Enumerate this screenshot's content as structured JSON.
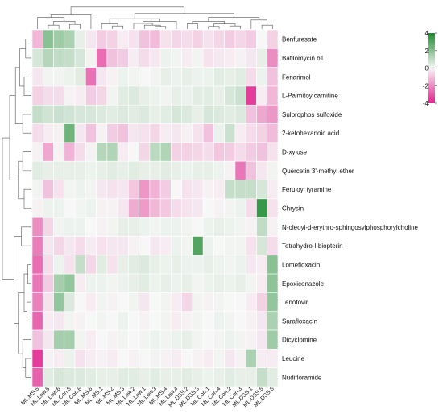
{
  "chart_data": {
    "type": "heatmap",
    "title": "",
    "xlabel": "",
    "ylabel": "",
    "columns": [
      "ML.MS.5",
      "ML.Low.5",
      "ML.Low.6",
      "ML.Con.5",
      "ML.Con.6",
      "ML.MS.6",
      "ML.MS.1",
      "ML.MS.2",
      "ML.MS.3",
      "ML.Low.2",
      "ML.Low.1",
      "ML.Low.3",
      "ML.MS.4",
      "ML.Low.4",
      "ML.DSS.2",
      "ML.DSS.3",
      "ML.Con.1",
      "ML.Con.4",
      "ML.Con.2",
      "ML.Con.3",
      "ML.DSS.1",
      "ML.DSS.5",
      "ML.DSS.6"
    ],
    "rows": [
      "Benfuresate",
      "Bafilomycin b1",
      "Fenarimol",
      "L-Palmitoylcarnitine",
      "Sulprophos sulfoxide",
      "2-ketohexanoic acid",
      "D-xylose",
      "Quercetin 3'-methyl ether",
      "Feruloyl tyramine",
      "Chrysin",
      "N-oleoyl-d-erythro-sphingosylphosphorylcholine",
      "Tetrahydro-l-biopterin",
      "Lomefloxacin",
      "Epoxiconazole",
      "Tenofovir",
      "Sarafloxacin",
      "Dicyclomine",
      "Leucine",
      "Nudifloramide"
    ],
    "values": [
      [
        -1.2,
        2.0,
        1.6,
        1.4,
        0.3,
        -0.3,
        -0.8,
        -0.7,
        -0.2,
        -0.4,
        -1.0,
        -1.1,
        -0.4,
        -0.6,
        -0.5,
        -0.7,
        -0.4,
        -0.6,
        -0.8,
        -0.6,
        -0.8,
        0.0,
        -0.7
      ],
      [
        0.6,
        1.2,
        1.0,
        0.9,
        0.6,
        0.1,
        -2.6,
        -1.0,
        -0.8,
        -0.2,
        -0.5,
        -0.3,
        0.2,
        0.1,
        -0.2,
        0.1,
        -0.4,
        -0.3,
        -0.2,
        -0.1,
        -0.3,
        0.3,
        -2.0
      ],
      [
        -0.3,
        0.1,
        0.1,
        0.2,
        0.4,
        -2.5,
        -0.3,
        -0.1,
        0.2,
        0.1,
        0.0,
        0.1,
        0.3,
        0.2,
        0.3,
        0.2,
        0.2,
        0.4,
        0.3,
        0.4,
        -0.5,
        0.2,
        -1.0
      ],
      [
        -0.7,
        -0.5,
        -0.5,
        -0.1,
        -0.2,
        -0.8,
        -0.6,
        0.1,
        0.4,
        0.5,
        0.3,
        0.2,
        0.1,
        0.3,
        0.2,
        0.4,
        0.4,
        0.3,
        0.6,
        0.8,
        -3.5,
        -0.2,
        -1.2
      ],
      [
        0.9,
        0.7,
        0.8,
        0.7,
        0.6,
        0.6,
        0.5,
        0.4,
        0.5,
        0.4,
        0.5,
        0.3,
        0.4,
        0.6,
        0.5,
        0.3,
        0.6,
        0.5,
        0.4,
        0.5,
        -1.0,
        -1.5,
        -1.8
      ],
      [
        -0.5,
        -0.2,
        -0.1,
        2.5,
        -0.3,
        -1.0,
        -0.1,
        -0.8,
        -1.0,
        -0.3,
        -0.4,
        -0.6,
        -0.2,
        -0.3,
        -0.1,
        -0.4,
        -1.0,
        0.2,
        0.8,
        -0.2,
        -0.5,
        -0.7,
        -1.1
      ],
      [
        -0.1,
        -1.5,
        -0.1,
        -1.3,
        -0.5,
        -0.1,
        1.2,
        1.3,
        -0.2,
        0.0,
        -0.6,
        1.1,
        1.3,
        -0.7,
        -0.7,
        -0.6,
        -0.5,
        -0.9,
        -0.8,
        -0.5,
        -0.8,
        -1.0,
        -0.4
      ],
      [
        0.4,
        0.3,
        0.3,
        0.3,
        0.3,
        0.2,
        0.3,
        0.4,
        0.3,
        0.4,
        0.3,
        0.3,
        0.4,
        0.3,
        0.2,
        0.3,
        0.3,
        0.2,
        -0.1,
        -2.4,
        -1.0,
        -0.3,
        0.1
      ],
      [
        0.1,
        -1.0,
        -0.4,
        0.1,
        0.2,
        0.1,
        -0.3,
        -0.4,
        -0.3,
        -0.9,
        -1.8,
        -1.3,
        -0.8,
        0.0,
        -0.4,
        -0.3,
        -0.1,
        -0.2,
        0.9,
        0.9,
        0.9,
        0.6,
        -0.2
      ],
      [
        -0.1,
        0.2,
        0.2,
        0.0,
        0.1,
        0.2,
        -0.1,
        -0.1,
        -0.3,
        -1.4,
        -1.7,
        -1.2,
        -0.9,
        -0.5,
        -0.4,
        -0.3,
        0.0,
        -0.1,
        0.1,
        0.2,
        -0.5,
        3.5,
        -0.4
      ],
      [
        -2.0,
        -0.6,
        0.1,
        0.2,
        0.2,
        0.0,
        -0.1,
        0.1,
        0.3,
        0.3,
        0.2,
        0.1,
        0.2,
        0.2,
        0.1,
        0.0,
        0.2,
        0.3,
        0.2,
        0.1,
        -0.1,
        1.0,
        -0.1
      ],
      [
        -2.3,
        -0.3,
        -0.6,
        -0.3,
        -0.5,
        -0.2,
        -0.4,
        -0.3,
        -0.3,
        -0.1,
        0.0,
        -0.3,
        -0.2,
        0.2,
        0.1,
        3.0,
        0.2,
        0.0,
        0.1,
        0.1,
        -0.4,
        0.6,
        -0.5
      ],
      [
        -2.6,
        -0.5,
        0.2,
        -0.4,
        0.9,
        -0.6,
        0.4,
        -0.4,
        0.3,
        0.4,
        0.5,
        0.3,
        0.2,
        0.3,
        0.2,
        0.2,
        0.3,
        0.2,
        0.1,
        0.2,
        -0.3,
        -0.2,
        2.0
      ],
      [
        -2.4,
        -0.8,
        1.5,
        1.8,
        -0.2,
        0.2,
        0.2,
        0.1,
        0.2,
        0.3,
        0.4,
        0.2,
        0.3,
        0.2,
        0.3,
        0.1,
        0.2,
        0.3,
        0.2,
        0.3,
        0.1,
        -0.2,
        1.9
      ],
      [
        -2.2,
        -0.4,
        1.8,
        0.5,
        0.0,
        -0.2,
        0.1,
        -0.1,
        0.0,
        0.1,
        -0.3,
        0.0,
        0.1,
        -0.2,
        -0.6,
        0.1,
        -0.1,
        0.1,
        0.0,
        0.0,
        -0.2,
        -0.7,
        1.8
      ],
      [
        -2.7,
        -0.2,
        -0.3,
        0.1,
        -0.1,
        0.0,
        0.1,
        0.0,
        0.2,
        0.0,
        -0.1,
        0.0,
        0.1,
        -0.2,
        -0.1,
        0.1,
        0.0,
        0.2,
        0.1,
        0.0,
        -0.1,
        -0.3,
        1.4
      ],
      [
        -1.0,
        -0.3,
        1.5,
        1.5,
        0.1,
        -0.2,
        0.0,
        -0.1,
        0.1,
        0.0,
        0.1,
        0.2,
        0.1,
        0.2,
        0.3,
        0.1,
        0.0,
        0.1,
        0.2,
        0.1,
        -0.1,
        -0.3,
        1.6
      ],
      [
        -3.5,
        -0.1,
        -0.2,
        0.2,
        -0.4,
        -0.2,
        -0.1,
        -0.2,
        0.0,
        -0.1,
        0.0,
        0.1,
        -0.1,
        -0.2,
        0.0,
        -0.1,
        -0.2,
        0.1,
        -0.3,
        -0.1,
        1.4,
        -0.2,
        -0.2
      ],
      [
        -2.8,
        0.4,
        0.6,
        0.5,
        0.5,
        0.4,
        0.3,
        0.3,
        0.4,
        0.4,
        0.3,
        0.4,
        0.3,
        0.3,
        0.4,
        0.3,
        0.2,
        0.3,
        0.4,
        0.3,
        0.3,
        0.9,
        0.4
      ]
    ],
    "color_scale": {
      "min": -4,
      "max": 4,
      "low_color": "#e0228d",
      "mid_color": "#f7f7f7",
      "high_color": "#1b8a2e"
    },
    "colorbar_ticks": [
      4,
      2,
      0,
      -2,
      -4
    ],
    "row_dendrogram": true,
    "column_dendrogram": true
  }
}
